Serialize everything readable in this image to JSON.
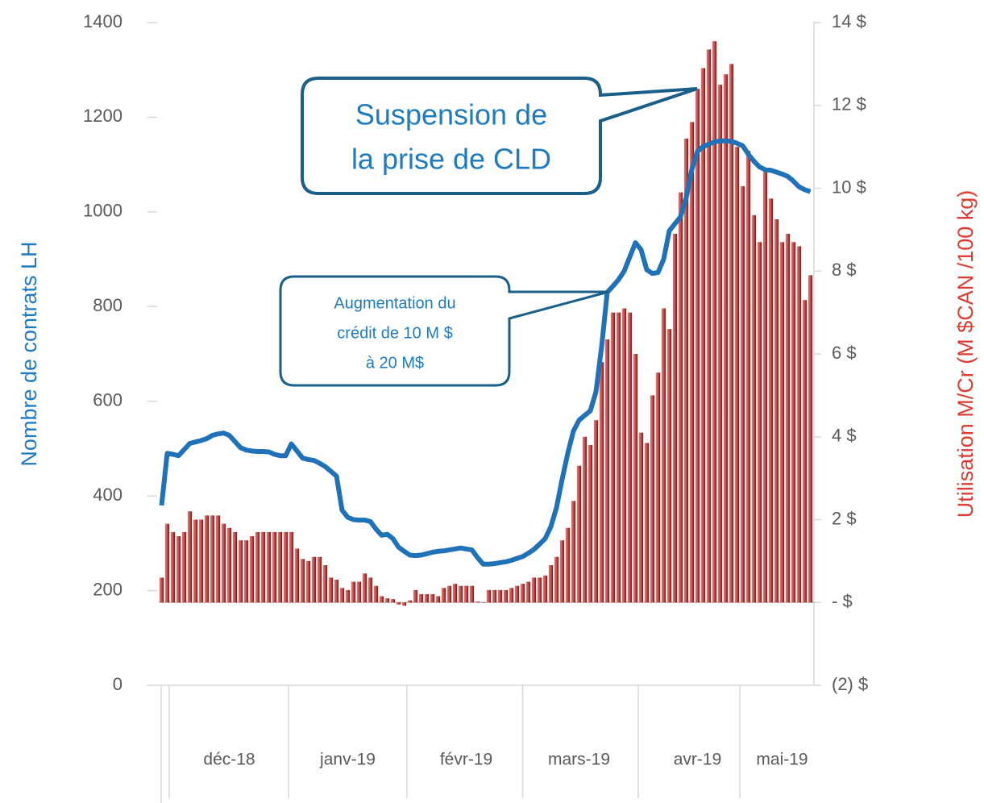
{
  "chart_data": {
    "type": "combo",
    "ylabel": "Nombre de contrats LH",
    "y2label": "Utilisation M/Cr (M $CAN /100 kg)",
    "ylim": [
      0,
      1400
    ],
    "yticks": [
      0,
      200,
      400,
      600,
      800,
      1000,
      1200,
      1400
    ],
    "y2lim": [
      -2,
      14
    ],
    "y2ticks": [
      {
        "value": -2,
        "label": "(2) $"
      },
      {
        "value": 0,
        "label": "-   $"
      },
      {
        "value": 2,
        "label": "2 $"
      },
      {
        "value": 4,
        "label": "4 $"
      },
      {
        "value": 6,
        "label": "6 $"
      },
      {
        "value": 8,
        "label": "8 $"
      },
      {
        "value": 10,
        "label": "10 $"
      },
      {
        "value": 12,
        "label": "12 $"
      },
      {
        "value": 14,
        "label": "14 $"
      }
    ],
    "categories": [
      null,
      null,
      null,
      null,
      null,
      null,
      null,
      null,
      null,
      null,
      null,
      null,
      "déc-18",
      null,
      null,
      null,
      null,
      null,
      null,
      null,
      null,
      null,
      null,
      null,
      null,
      null,
      null,
      null,
      null,
      null,
      null,
      null,
      null,
      "janv-19",
      null,
      null,
      null,
      null,
      null,
      null,
      null,
      null,
      null,
      null,
      null,
      null,
      null,
      null,
      null,
      null,
      null,
      null,
      null,
      null,
      "févr-19",
      null,
      null,
      null,
      null,
      null,
      null,
      null,
      null,
      null,
      null,
      null,
      null,
      null,
      null,
      null,
      null,
      null,
      null,
      null,
      "mars-19",
      null,
      null,
      null,
      null,
      null,
      null,
      null,
      null,
      null,
      null,
      null,
      null,
      null,
      null,
      null,
      null,
      null,
      null,
      null,
      null,
      "avr-19",
      null,
      null,
      null,
      null,
      null,
      null,
      null,
      null,
      null,
      null,
      null,
      null,
      null,
      null,
      "mai-19",
      null,
      null,
      null,
      null,
      null
    ],
    "series": [
      {
        "type": "bar",
        "axis": "y2",
        "color": "#c0504d",
        "values": [
          0.6,
          1.9,
          1.7,
          1.6,
          1.7,
          2.2,
          2.0,
          2.0,
          2.1,
          2.1,
          2.1,
          1.9,
          1.8,
          1.7,
          1.5,
          1.5,
          1.6,
          1.7,
          1.7,
          1.7,
          1.7,
          1.7,
          1.7,
          1.7,
          1.3,
          1.05,
          1.0,
          1.1,
          1.1,
          0.9,
          0.6,
          0.55,
          0.35,
          0.3,
          0.5,
          0.5,
          0.7,
          0.6,
          0.4,
          0.15,
          0.1,
          0.08,
          -0.05,
          -0.08,
          0.05,
          0.3,
          0.2,
          0.2,
          0.2,
          0.15,
          0.35,
          0.4,
          0.45,
          0.4,
          0.4,
          0.4,
          0.02,
          0,
          0.3,
          0.3,
          0.3,
          0.3,
          0.35,
          0.4,
          0.45,
          0.5,
          0.6,
          0.6,
          0.65,
          0.9,
          1.1,
          1.5,
          1.8,
          2.45,
          3.3,
          4.0,
          3.8,
          4.4,
          5.8,
          6.35,
          7.0,
          7.0,
          7.1,
          7.0,
          6.0,
          4.1,
          3.85,
          5.0,
          5.55,
          7.1,
          6.6,
          8.9,
          9.9,
          11.2,
          11.6,
          12.4,
          12.9,
          13.35,
          13.55,
          12.5,
          12.75,
          13.0,
          11.0,
          10.05,
          10.9,
          9.35,
          8.7,
          10.4,
          9.75,
          9.25,
          8.7,
          8.9,
          8.7,
          8.6,
          7.3,
          7.9
        ]
      },
      {
        "type": "line",
        "axis": "y",
        "color": "#1f72b8",
        "values": [
          380,
          490,
          488,
          485,
          498,
          511,
          514,
          517,
          521,
          528,
          531,
          533,
          528,
          515,
          502,
          497,
          495,
          494,
          494,
          493,
          488,
          485,
          485,
          510,
          495,
          480,
          477,
          475,
          469,
          462,
          452,
          442,
          370,
          355,
          350,
          349,
          349,
          346,
          330,
          317,
          319,
          310,
          292,
          283,
          275,
          274,
          275,
          278,
          281,
          283,
          284,
          286,
          288,
          290,
          288,
          286,
          270,
          256,
          256,
          257,
          259,
          261,
          264,
          268,
          272,
          279,
          287,
          298,
          310,
          335,
          375,
          435,
          490,
          537,
          560,
          570,
          580,
          620,
          715,
          830,
          843,
          857,
          875,
          905,
          935,
          920,
          878,
          870,
          872,
          900,
          960,
          975,
          990,
          1030,
          1090,
          1128,
          1138,
          1143,
          1148,
          1150,
          1150,
          1149,
          1145,
          1140,
          1122,
          1107,
          1095,
          1089,
          1088,
          1084,
          1080,
          1075,
          1065,
          1053,
          1047,
          1043
        ]
      }
    ],
    "annotations": [
      {
        "lines": [
          "Suspension de",
          "la prise de CLD"
        ]
      },
      {
        "lines": [
          "Augmentation du",
          "crédit de 10 M $",
          "à 20 M$"
        ]
      }
    ]
  }
}
